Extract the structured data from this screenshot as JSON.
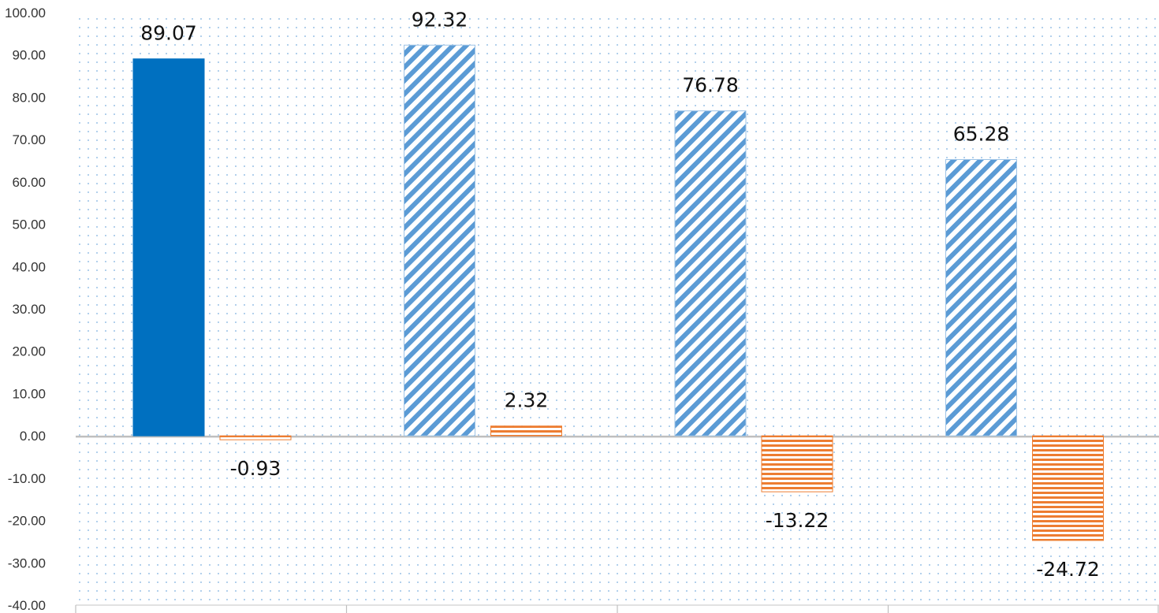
{
  "chart_data": {
    "type": "bar",
    "categories": [
      "",
      "",
      "",
      ""
    ],
    "series": [
      {
        "values": [
          89.07,
          92.32,
          76.78,
          65.28
        ]
      },
      {
        "values": [
          -0.93,
          2.32,
          -13.22,
          -24.72
        ]
      }
    ],
    "data_labels": [
      [
        "89.07",
        "92.32",
        "76.78",
        "65.28"
      ],
      [
        "-0.93",
        "2.32",
        "-13.22",
        "-24.72"
      ]
    ],
    "y_ticks": [
      "100.00",
      "90.00",
      "80.00",
      "70.00",
      "60.00",
      "50.00",
      "40.00",
      "30.00",
      "20.00",
      "10.00",
      "0.00",
      "-10.00",
      "-20.00",
      "-30.00",
      "-40.00"
    ],
    "ylim": [
      -40,
      100
    ],
    "title": "",
    "xlabel": "",
    "ylabel": "",
    "grid": false,
    "legend": "none",
    "colors": {
      "series1_solid": "#0070c0",
      "series1_hatch": "#5b9bd5",
      "series2": "#ed7d31",
      "plot_dots": "#9dc3e6",
      "axis": "#bfbfbf"
    }
  }
}
